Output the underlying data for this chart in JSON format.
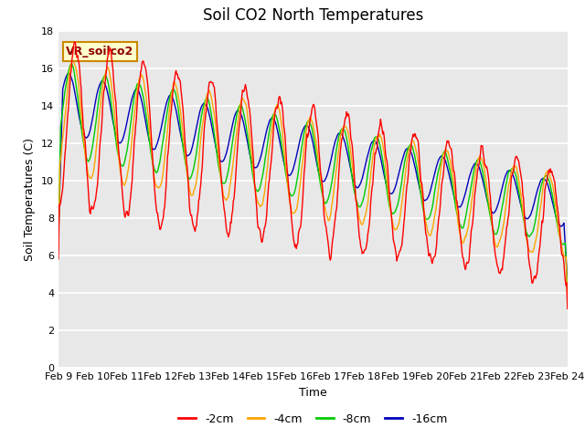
{
  "title": "Soil CO2 North Temperatures",
  "xlabel": "Time",
  "ylabel": "Soil Temperatures (C)",
  "ylim": [
    0,
    18
  ],
  "yticks": [
    0,
    2,
    4,
    6,
    8,
    10,
    12,
    14,
    16,
    18
  ],
  "xtick_labels": [
    "Feb 9",
    "Feb 10",
    "Feb 11",
    "Feb 12",
    "Feb 13",
    "Feb 14",
    "Feb 15",
    "Feb 16",
    "Feb 17",
    "Feb 18",
    "Feb 19",
    "Feb 20",
    "Feb 21",
    "Feb 22",
    "Feb 23",
    "Feb 24"
  ],
  "colors": {
    "-2cm": "#ff0000",
    "-4cm": "#ffa500",
    "-8cm": "#00cc00",
    "-16cm": "#0000bb"
  },
  "vr_label": "VR_soilco2",
  "fig_bg": "#ffffff",
  "axes_bg": "#e8e8e8",
  "title_fontsize": 12,
  "axis_fontsize": 9,
  "tick_fontsize": 8,
  "n_days": 15,
  "n_pts_per_day": 48
}
